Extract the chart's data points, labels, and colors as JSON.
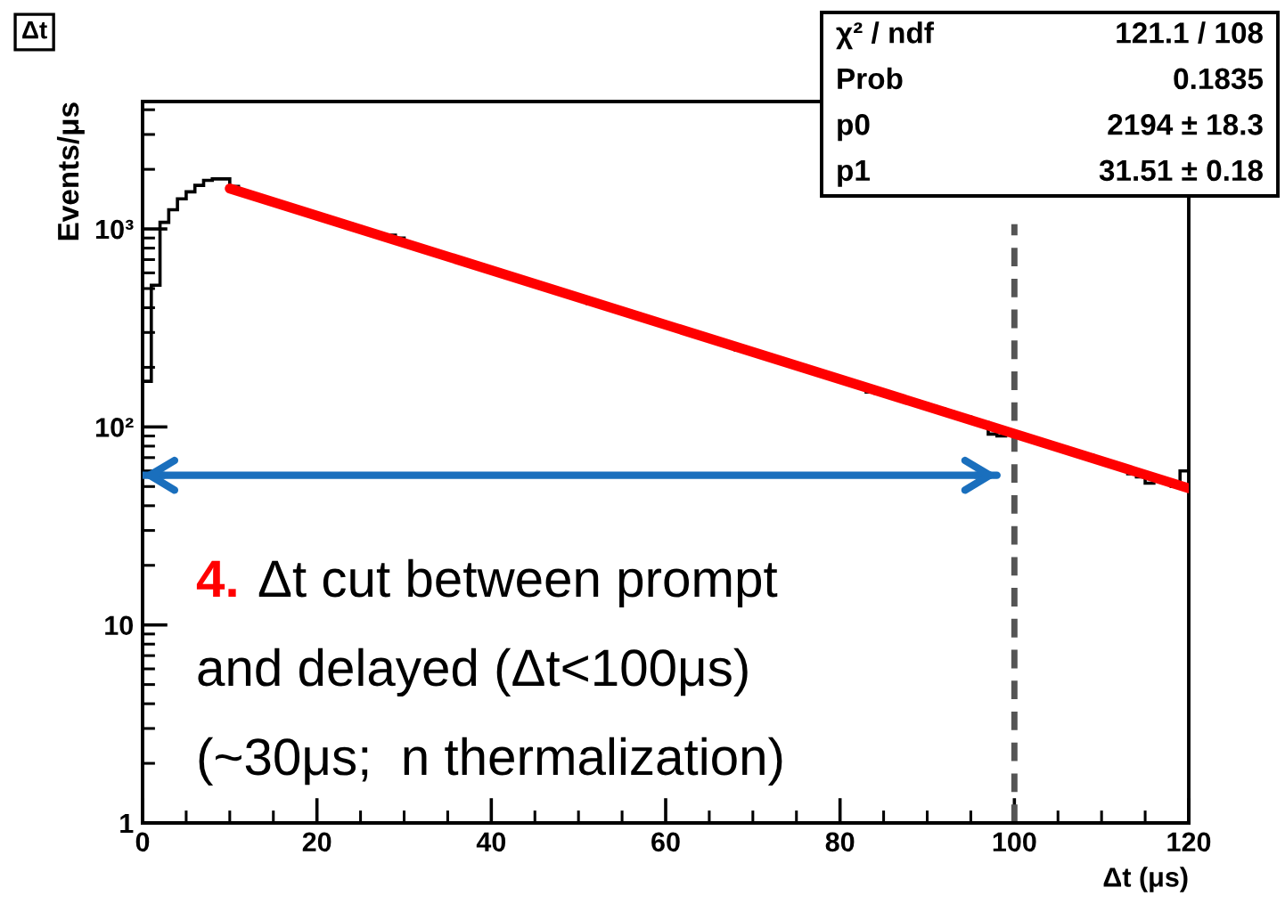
{
  "chart_data": {
    "type": "histogram",
    "title": "Δt",
    "xlabel": "Δt (μs)",
    "ylabel": "Events/μs",
    "series": [
      {
        "type": "histogram",
        "color": "#000000",
        "bins": [
          0,
          1,
          2,
          3,
          4,
          5,
          6,
          7,
          8,
          9,
          10,
          11,
          12,
          13,
          14,
          15,
          16,
          17,
          18,
          19,
          20,
          21,
          22,
          23,
          24,
          25,
          26,
          27,
          28,
          29,
          30,
          31,
          32,
          33,
          34,
          35,
          36,
          37,
          38,
          39,
          40,
          41,
          42,
          43,
          44,
          45,
          46,
          47,
          48,
          49,
          50,
          51,
          52,
          53,
          54,
          55,
          56,
          57,
          58,
          59,
          60,
          61,
          62,
          63,
          64,
          65,
          66,
          67,
          68,
          69,
          70,
          71,
          72,
          73,
          74,
          75,
          76,
          77,
          78,
          79,
          80,
          81,
          82,
          83,
          84,
          85,
          86,
          87,
          88,
          89,
          90,
          91,
          92,
          93,
          94,
          95,
          96,
          97,
          98,
          99,
          100,
          101,
          102,
          103,
          104,
          105,
          106,
          107,
          108,
          109,
          110,
          111,
          112,
          113,
          114,
          115,
          116,
          117,
          118,
          119,
          120
        ],
        "values": [
          170,
          520,
          1080,
          1250,
          1420,
          1540,
          1660,
          1760,
          1790,
          1790,
          1640,
          1548,
          1500,
          1453,
          1408,
          1364,
          1321,
          1280,
          1240,
          1201,
          1164,
          1128,
          1092,
          1058,
          1025,
          993,
          962,
          932,
          930,
          900,
          848,
          821,
          796,
          771,
          747,
          723,
          701,
          679,
          658,
          637,
          617,
          598,
          579,
          561,
          544,
          527,
          510,
          494,
          479,
          464,
          450,
          420,
          410,
          409,
          396,
          384,
          372,
          360,
          349,
          338,
          327,
          317,
          307,
          298,
          288,
          279,
          271,
          262,
          245,
          240,
          239,
          231,
          224,
          217,
          210,
          204,
          197,
          191,
          185,
          179,
          174,
          169,
          163,
          150,
          148,
          148,
          144,
          139,
          135,
          131,
          127,
          123,
          119,
          115,
          112,
          108,
          105,
          92,
          90,
          95,
          92,
          89,
          87,
          84,
          81,
          79,
          76,
          74,
          72,
          69,
          67,
          65,
          63,
          58,
          56,
          52,
          55,
          54,
          50,
          60
        ]
      },
      {
        "type": "line",
        "color": "#ff0000",
        "x": [
          10,
          120
        ],
        "values": [
          1600,
          49
        ]
      },
      {
        "type": "line",
        "color": "#1a6fbd",
        "x": [
          0,
          98
        ],
        "values": [
          57,
          57
        ]
      }
    ],
    "xlim": [
      0,
      120
    ],
    "xticks": [
      0,
      20,
      40,
      60,
      80,
      100,
      120
    ],
    "log": "y",
    "ylim": [
      1,
      4400
    ],
    "yticks": [
      1,
      10,
      {
        "value": 100,
        "label": "10²"
      },
      {
        "value": 1000,
        "label": "10³"
      }
    ],
    "grid": false,
    "legend": false,
    "ref_lines": [
      {
        "axis": "x",
        "value": 100,
        "color": "#555555",
        "line_style": "dashed"
      }
    ],
    "annotations": [
      "χ² / ndf",
      "121.1 / 108",
      "Prob",
      "0.1835",
      "p0",
      "2194 ± 18.3",
      "p1",
      "31.51 ± 0.18",
      "4.",
      "Δt cut between prompt\nand delayed (Δt<100μs)\n(~30μs;  n thermalization)"
    ]
  }
}
